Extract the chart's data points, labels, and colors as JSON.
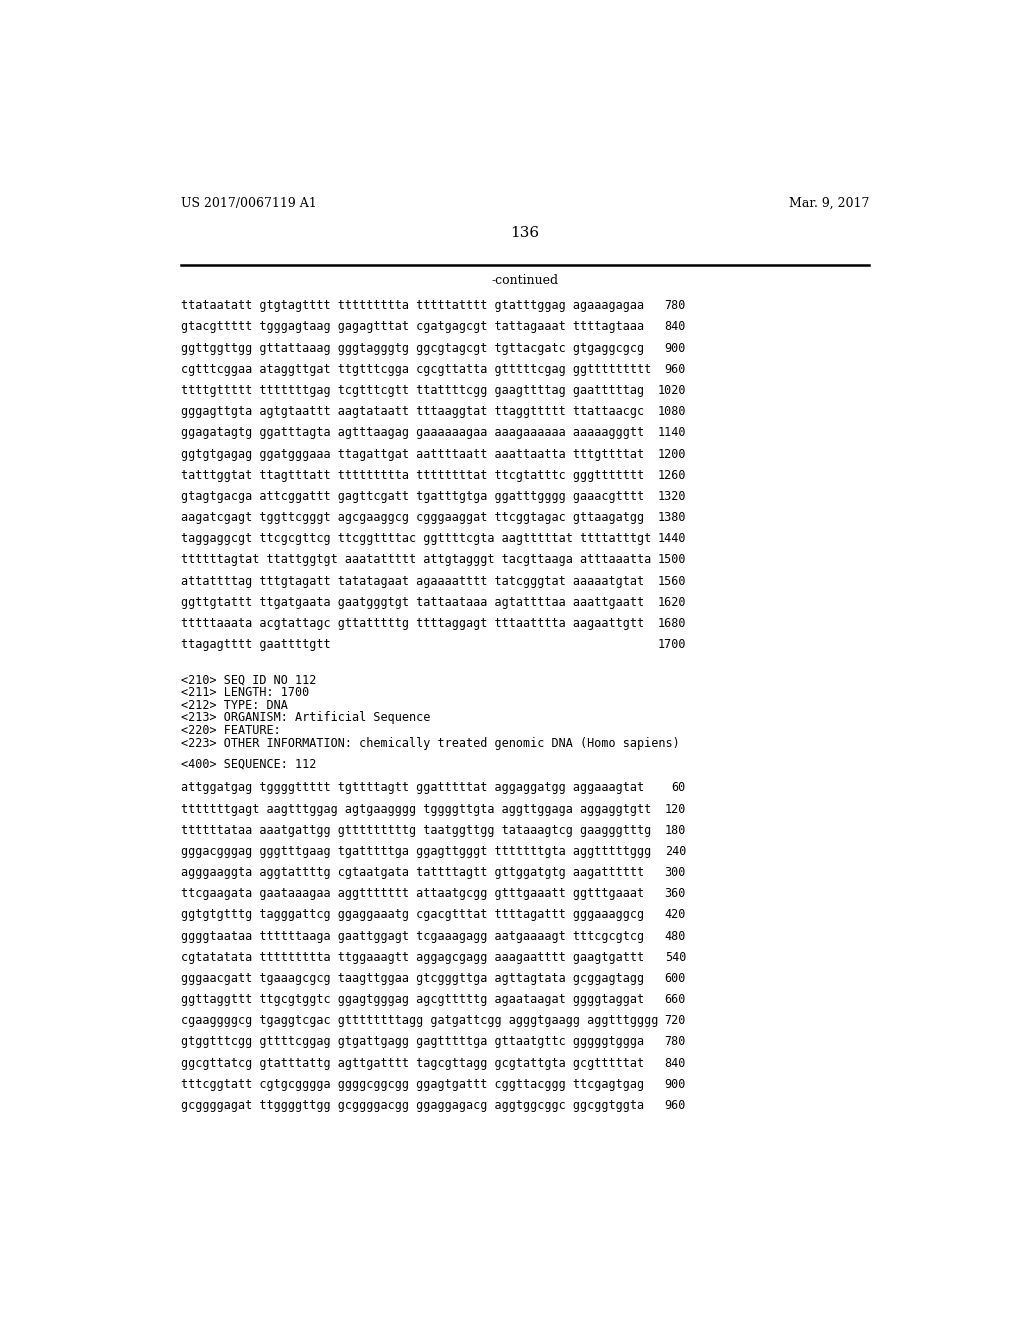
{
  "header_left": "US 2017/0067119 A1",
  "header_right": "Mar. 9, 2017",
  "page_number": "136",
  "continued_text": "-continued",
  "background_color": "#ffffff",
  "text_color": "#000000",
  "header_fontsize": 9.0,
  "page_num_fontsize": 11.0,
  "mono_fontsize": 8.5,
  "sequence_lines_top": [
    [
      "ttataatatt gtgtagtttt ttttttttta tttttatttt gtatttggag agaaagagaa",
      "780"
    ],
    [
      "gtacgttttt tgggagtaag gagagtttat cgatgagcgt tattagaaat ttttagtaaa",
      "840"
    ],
    [
      "ggttggttgg gttattaaag gggtagggtg ggcgtagcgt tgttacgatc gtgaggcgcg",
      "900"
    ],
    [
      "cgtttcggaa ataggttgat ttgtttcgga cgcgttatta gtttttcgag ggttttttttt",
      "960"
    ],
    [
      "ttttgttttt tttttttgag tcgtttcgtt ttattttcgg gaagttttag gaatttttag",
      "1020"
    ],
    [
      "gggagttgta agtgtaattt aagtataatt tttaaggtat ttaggttttt ttattaacgc",
      "1080"
    ],
    [
      "ggagatagtg ggatttagta agtttaagag gaaaaaagaa aaagaaaaaa aaaaagggtt",
      "1140"
    ],
    [
      "ggtgtgagag ggatgggaaa ttagattgat aattttaatt aaattaatta tttgttttat",
      "1200"
    ],
    [
      "tatttggtat ttagtttatt ttttttttta ttttttttat ttcgtatttc gggttttttt",
      "1260"
    ],
    [
      "gtagtgacga attcggattt gagttcgatt tgatttgtga ggatttgggg gaaacgtttt",
      "1320"
    ],
    [
      "aagatcgagt tggttcgggt agcgaaggcg cgggaaggat ttcggtagac gttaagatgg",
      "1380"
    ],
    [
      "taggaggcgt ttcgcgttcg ttcggttttac ggttttcgta aagtttttat ttttatttgt",
      "1440"
    ],
    [
      "ttttttagtat ttattggtgt aaatattttt attgtagggt tacgttaaga atttaaatta",
      "1500"
    ],
    [
      "attattttag tttgtagatt tatatagaat agaaaatttt tatcgggtat aaaaatgtat",
      "1560"
    ],
    [
      "ggttgtattt ttgatgaata gaatgggtgt tattaataaa agtattttaa aaattgaatt",
      "1620"
    ],
    [
      "tttttaaata acgtattagc gttatttttg ttttaggagt tttaatttta aagaattgtt",
      "1680"
    ],
    [
      "ttagagtttt gaattttgtt",
      "1700"
    ]
  ],
  "metadata_lines": [
    "<210> SEQ ID NO 112",
    "<211> LENGTH: 1700",
    "<212> TYPE: DNA",
    "<213> ORGANISM: Artificial Sequence",
    "<220> FEATURE:",
    "<223> OTHER INFORMATION: chemically treated genomic DNA (Homo sapiens)"
  ],
  "sequence_label": "<400> SEQUENCE: 112",
  "sequence_lines_bottom": [
    [
      "attggatgag tggggttttt tgttttagtt ggatttttat aggaggatgg aggaaagtat",
      "60"
    ],
    [
      "tttttttgagt aagtttggag agtgaagggg tggggttgta aggttggaga aggaggtgtt",
      "120"
    ],
    [
      "ttttttataa aaatgattgg gtttttttttg taatggttgg tataaagtcg gaagggtttg",
      "180"
    ],
    [
      "gggacgggag gggtttgaag tgatttttga ggagttgggt tttttttgta aggtttttggg",
      "240"
    ],
    [
      "agggaaggta aggtattttg cgtaatgata tattttagtt gttggatgtg aagatttttt",
      "300"
    ],
    [
      "ttcgaagata gaataaagaa aggttttttt attaatgcgg gtttgaaatt ggtttgaaat",
      "360"
    ],
    [
      "ggtgtgtttg tagggattcg ggaggaaatg cgacgtttat ttttagattt gggaaaggcg",
      "420"
    ],
    [
      "ggggtaataa ttttttaaga gaattggagt tcgaaagagg aatgaaaagt tttcgcgtcg",
      "480"
    ],
    [
      "cgtatatata ttttttttta ttggaaagtt aggagcgagg aaagaatttt gaagtgattt",
      "540"
    ],
    [
      "gggaacgatt tgaaagcgcg taagttggaa gtcgggttga agttagtata gcggagtagg",
      "600"
    ],
    [
      "ggttaggttt ttgcgtggtc ggagtgggag agcgtttttg agaataagat ggggtaggat",
      "660"
    ],
    [
      "cgaaggggcg tgaggtcgac gttttttttagg gatgattcgg agggtgaagg aggtttgggg",
      "720"
    ],
    [
      "gtggtttcgg gttttcggag gtgattgagg gagtttttga gttaatgttc gggggtggga",
      "780"
    ],
    [
      "ggcgttatcg gtatttattg agttgatttt tagcgttagg gcgtattgta gcgtttttat",
      "840"
    ],
    [
      "tttcggtatt cgtgcgggga ggggcggcgg ggagtgattt cggttacggg ttcgagtgag",
      "900"
    ],
    [
      "gcggggagat ttggggttgg gcggggacgg ggaggagacg aggtggcggc ggcggtggta",
      "960"
    ]
  ]
}
